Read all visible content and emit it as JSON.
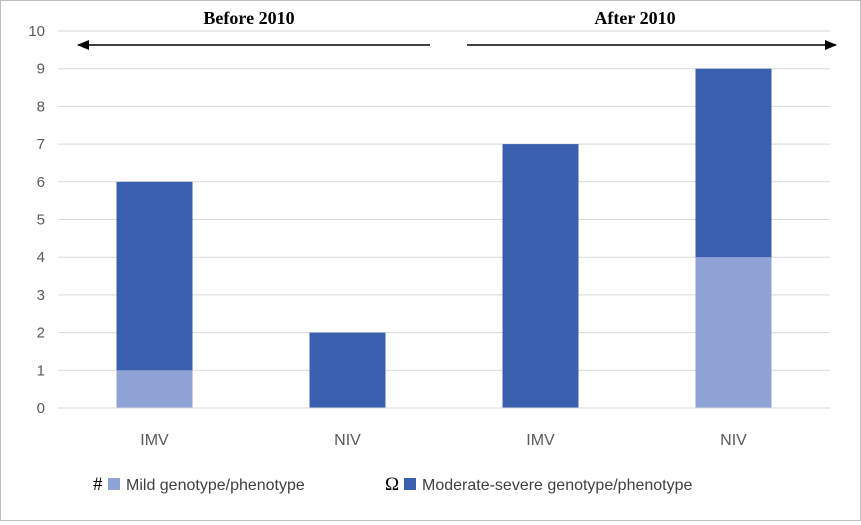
{
  "chart_data": {
    "type": "bar",
    "stacked": true,
    "categories": [
      "IMV",
      "NIV",
      "IMV",
      "NIV"
    ],
    "series": [
      {
        "name": "Mild genotype/phenotype",
        "symbol": "#",
        "color": "#8fa3d6",
        "values": [
          1,
          0,
          0,
          4
        ]
      },
      {
        "name": "Moderate-severe genotype/phenotype",
        "symbol": "Ω",
        "color": "#3a5fae",
        "values": [
          5,
          2,
          7,
          5
        ]
      }
    ],
    "ylim": [
      0,
      10
    ],
    "yticks": [
      "0",
      "1",
      "2",
      "3",
      "4",
      "5",
      "6",
      "7",
      "8",
      "9",
      "10"
    ],
    "grid": true,
    "legend_position": "bottom",
    "annotations": [
      {
        "text": "Before 2010",
        "spans_categories": [
          0,
          1
        ],
        "arrow": "left"
      },
      {
        "text": "After 2010",
        "spans_categories": [
          2,
          3
        ],
        "arrow": "right"
      }
    ]
  }
}
